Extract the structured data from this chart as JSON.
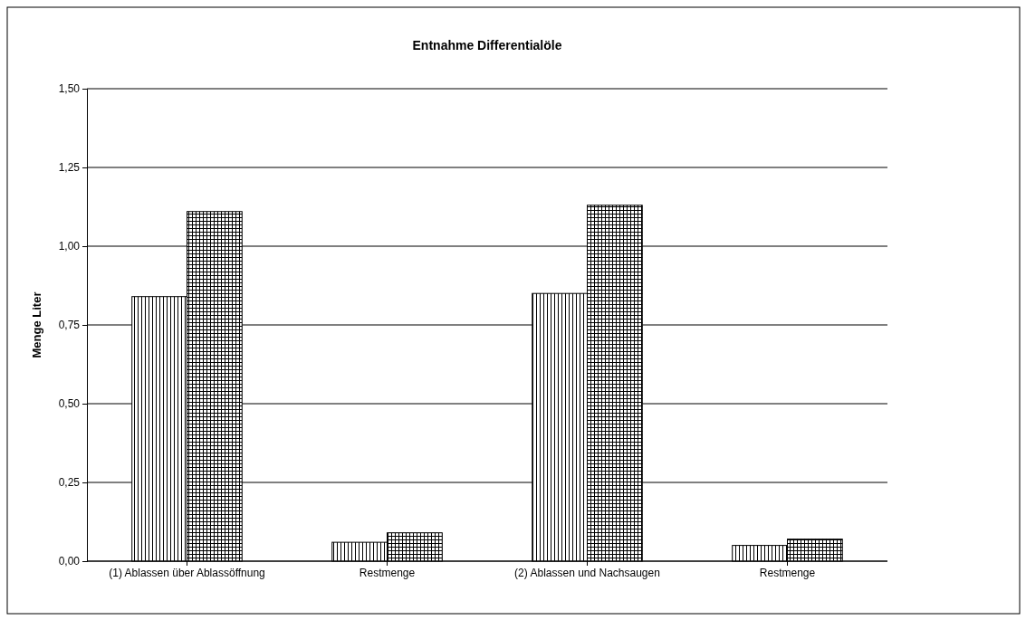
{
  "chart_data": {
    "type": "bar",
    "title": "Entnahme Differentialöle",
    "ylabel": "Menge  Liter",
    "categories": [
      "(1) Ablassen über Ablassöffnung",
      "Restmenge",
      "(2) Ablassen und Nachsaugen",
      "Restmenge"
    ],
    "series": [
      {
        "color": "#000000",
        "values": [
          0.84,
          0.06,
          0.85,
          0.05
        ]
      },
      {
        "color": "#000000",
        "values": [
          1.11,
          0.09,
          1.13,
          0.07
        ]
      }
    ],
    "ylim": [
      0,
      1.5
    ],
    "yticks": [
      {
        "value": 0,
        "label": "0,00"
      },
      {
        "value": 0.25,
        "label": "0,25"
      },
      {
        "value": 0.5,
        "label": "0,50"
      },
      {
        "value": 0.75,
        "label": "0,75"
      },
      {
        "value": 1,
        "label": "1,00"
      },
      {
        "value": 1.25,
        "label": "1,25"
      },
      {
        "value": 1.5,
        "label": "1,50"
      }
    ],
    "grid": "y"
  }
}
